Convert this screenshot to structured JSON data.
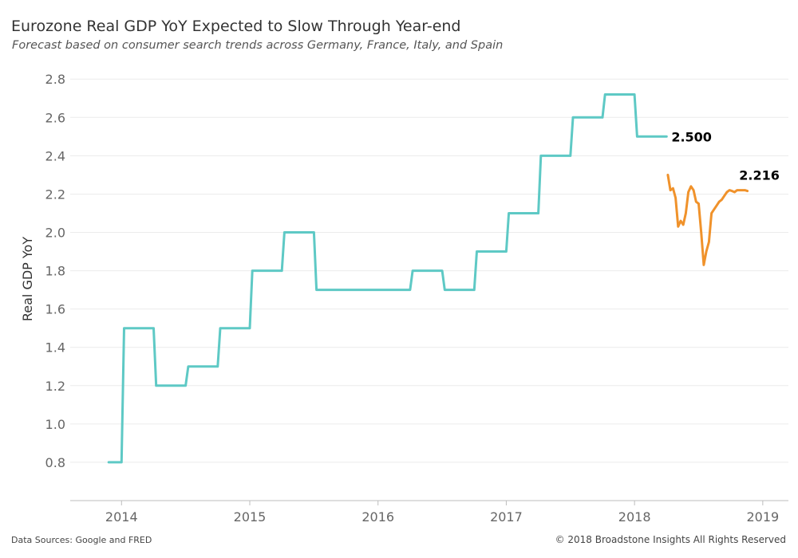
{
  "header": {
    "title": "Eurozone Real GDP YoY Expected to Slow Through Year-end",
    "subtitle": "Forecast based on consumer search trends across Germany, France, Italy, and Spain"
  },
  "footer": {
    "sources": "Data Sources: Google and FRED",
    "copyright": "© 2018 Broadstone Insights All Rights Reserved"
  },
  "chart_data": {
    "type": "line",
    "ylabel": "Real GDP YoY",
    "xlim": [
      2013.6,
      2019.2
    ],
    "ylim": [
      0.6,
      2.88
    ],
    "x_ticks": [
      2014,
      2015,
      2016,
      2017,
      2018,
      2019
    ],
    "x_tick_labels": [
      "2014",
      "2015",
      "2016",
      "2017",
      "2018",
      "2019"
    ],
    "y_ticks": [
      0.8,
      1.0,
      1.2,
      1.4,
      1.6,
      1.8,
      2.0,
      2.2,
      2.4,
      2.6,
      2.8
    ],
    "y_tick_labels": [
      "0.8",
      "1.0",
      "1.2",
      "1.4",
      "1.6",
      "1.8",
      "2.0",
      "2.2",
      "2.4",
      "2.6",
      "2.8"
    ],
    "grid": "horizontal",
    "series": [
      {
        "color": "#5ec9c5",
        "end_label": "2.500",
        "x": [
          2013.9,
          2014.0,
          2014.02,
          2014.25,
          2014.27,
          2014.5,
          2014.52,
          2014.75,
          2014.77,
          2015.0,
          2015.02,
          2015.25,
          2015.27,
          2015.5,
          2015.52,
          2016.25,
          2016.27,
          2016.5,
          2016.52,
          2016.75,
          2016.77,
          2017.0,
          2017.02,
          2017.25,
          2017.27,
          2017.5,
          2017.52,
          2017.75,
          2017.77,
          2018.0,
          2018.02,
          2018.25
        ],
        "y": [
          0.8,
          0.8,
          1.5,
          1.5,
          1.2,
          1.2,
          1.3,
          1.3,
          1.5,
          1.5,
          1.8,
          1.8,
          2.0,
          2.0,
          1.7,
          1.7,
          1.8,
          1.8,
          1.7,
          1.7,
          1.9,
          1.9,
          2.1,
          2.1,
          2.4,
          2.4,
          2.6,
          2.6,
          2.72,
          2.72,
          2.5,
          2.5
        ]
      },
      {
        "color": "#f0922b",
        "end_label": "2.216",
        "x": [
          2018.26,
          2018.28,
          2018.3,
          2018.32,
          2018.34,
          2018.36,
          2018.38,
          2018.4,
          2018.42,
          2018.44,
          2018.46,
          2018.48,
          2018.5,
          2018.52,
          2018.54,
          2018.56,
          2018.58,
          2018.6,
          2018.62,
          2018.64,
          2018.66,
          2018.68,
          2018.7,
          2018.72,
          2018.74,
          2018.76,
          2018.78,
          2018.8,
          2018.82,
          2018.84,
          2018.86,
          2018.88
        ],
        "y": [
          2.3,
          2.22,
          2.23,
          2.18,
          2.03,
          2.06,
          2.04,
          2.1,
          2.21,
          2.24,
          2.22,
          2.16,
          2.15,
          2.0,
          1.83,
          1.9,
          1.95,
          2.1,
          2.12,
          2.14,
          2.16,
          2.17,
          2.19,
          2.21,
          2.22,
          2.216,
          2.21,
          2.22,
          2.22,
          2.22,
          2.22,
          2.216
        ]
      }
    ]
  }
}
